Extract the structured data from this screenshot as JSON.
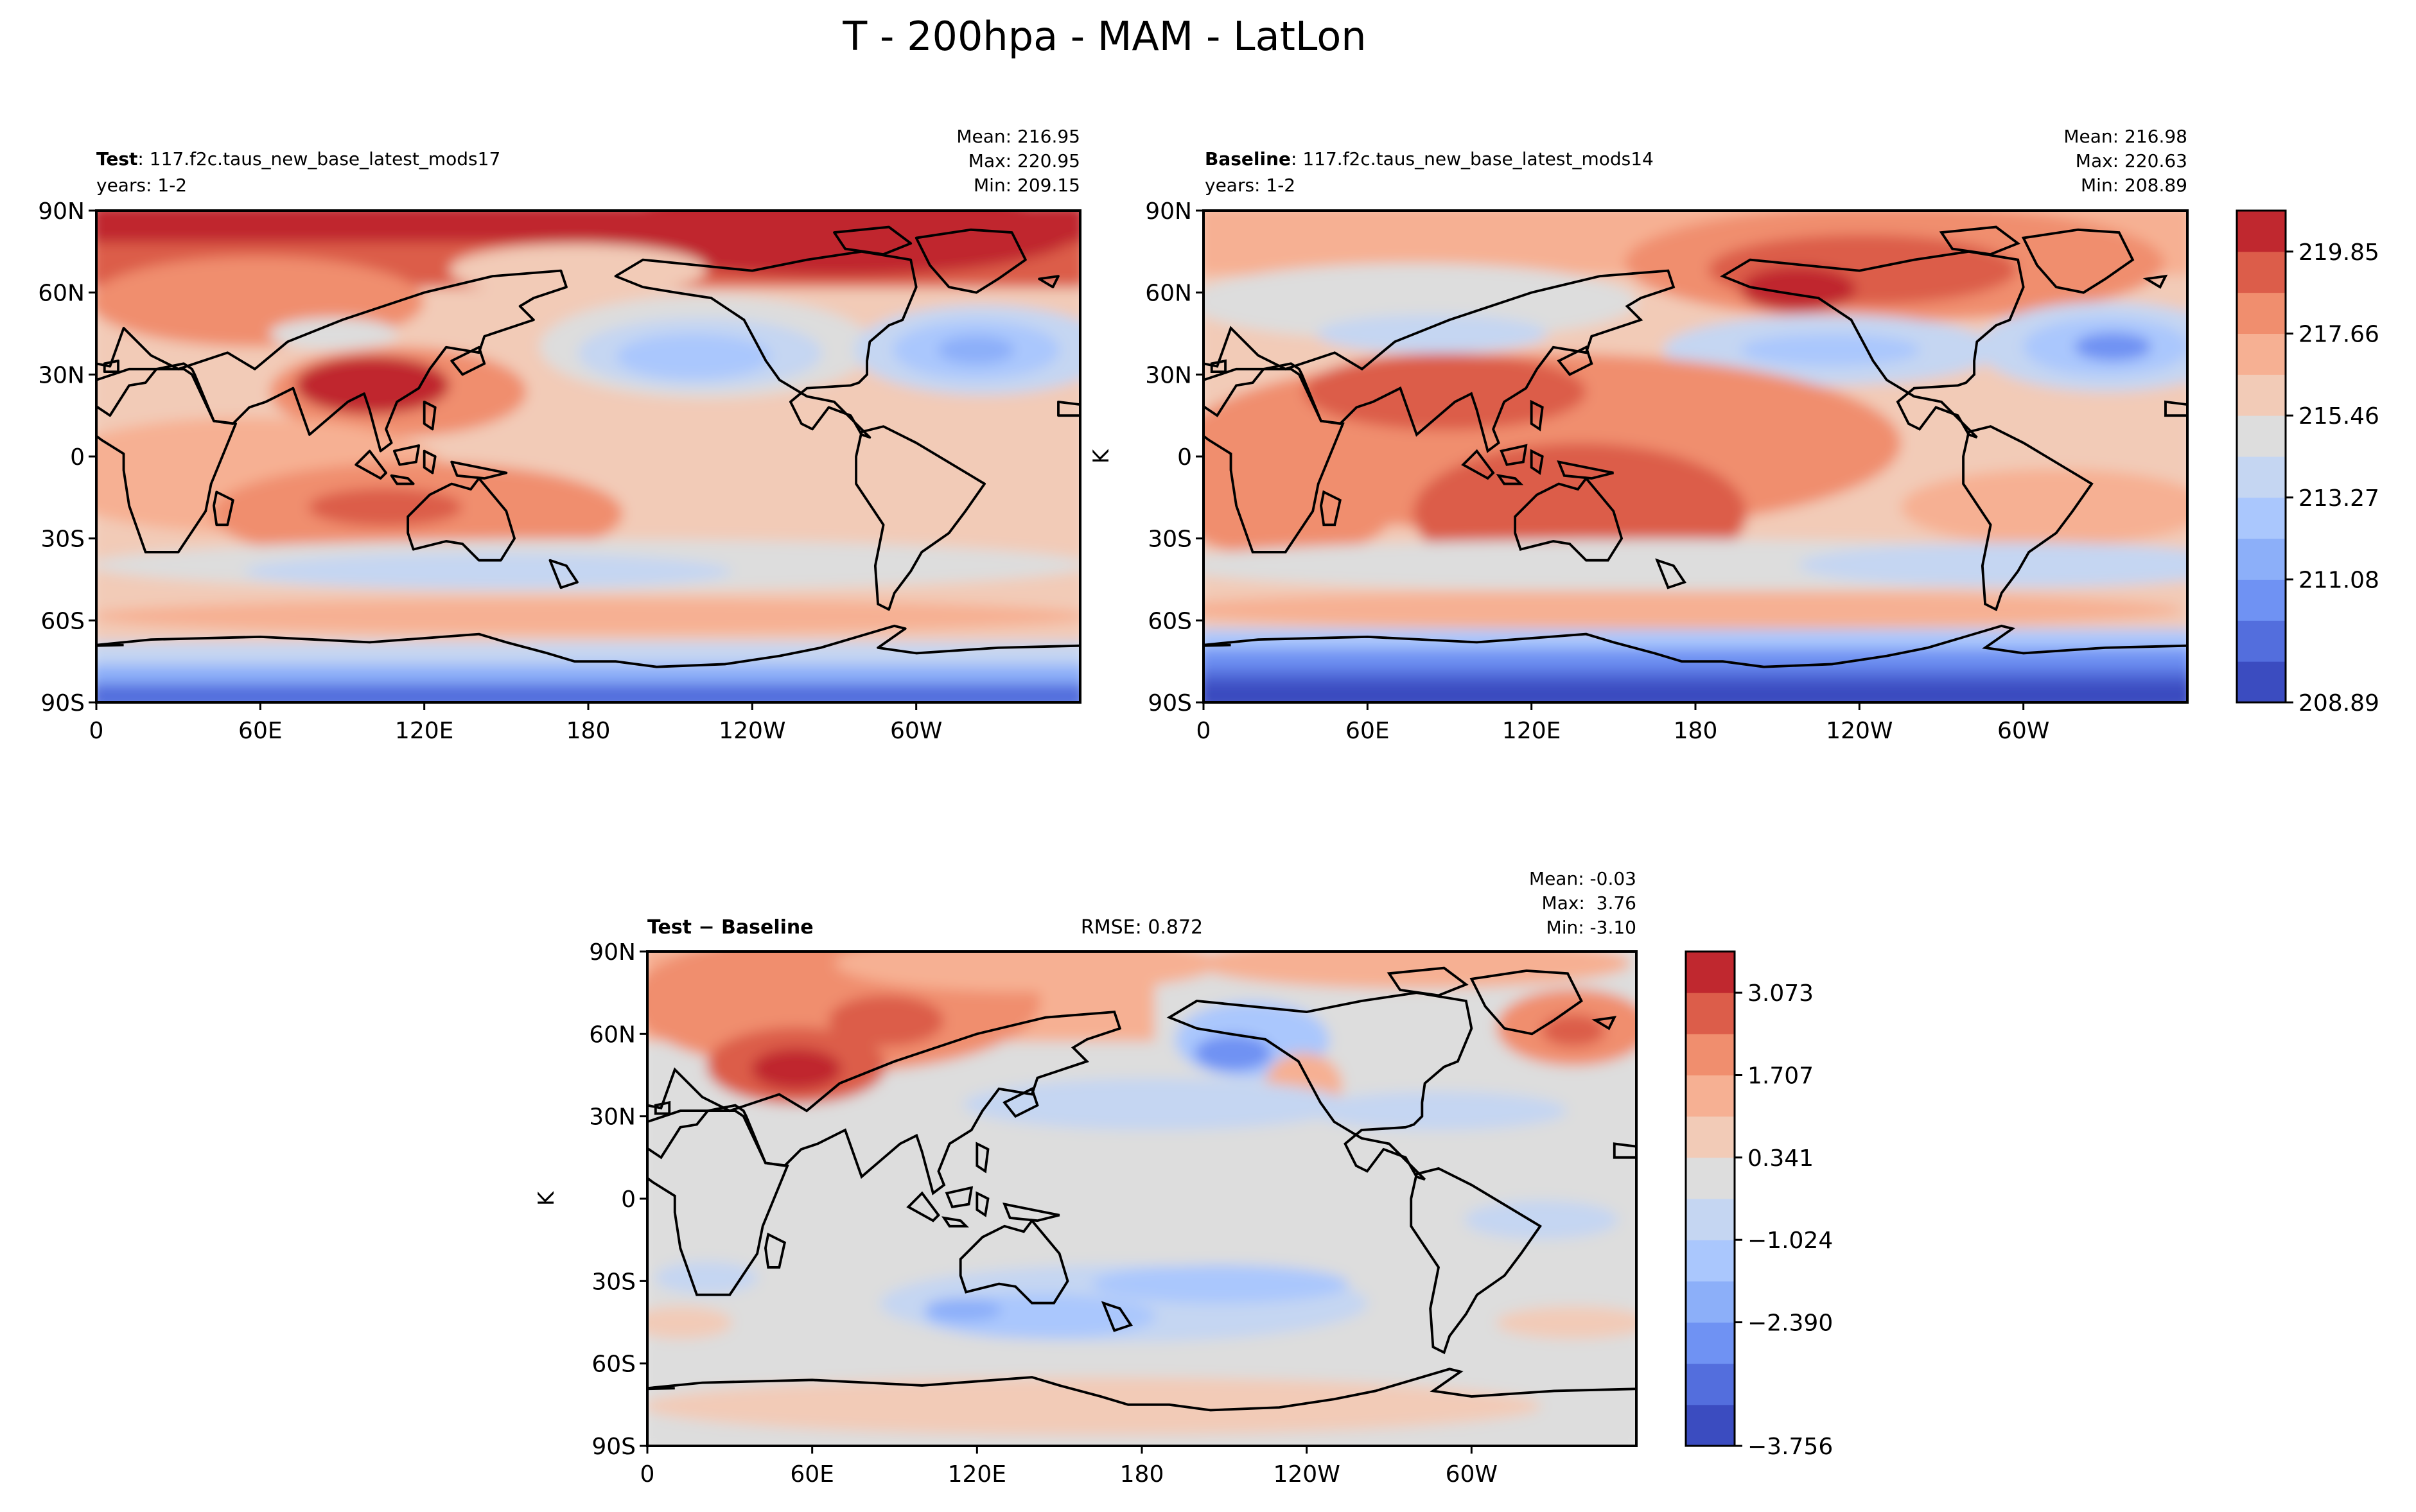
{
  "figure_title": "T - 200hpa - MAM - LatLon",
  "colors": {
    "levels": [
      "#3b4cc0",
      "#536edd",
      "#6f92f3",
      "#8caff9",
      "#aac7fd",
      "#c5d6f2",
      "#dddddd",
      "#f2cbb7",
      "#f6b093",
      "#f08e6e",
      "#dc5d4a",
      "#c0282f"
    ],
    "coast": "#000000",
    "frame": "#000000"
  },
  "panels": {
    "test": {
      "label_bold": "Test",
      "label_rest": ": 117.f2c.taus_new_base_latest_mods17",
      "years": "years: 1-2",
      "stats": {
        "mean": "Mean: 216.95",
        "max": "Max: 220.95",
        "min": "Min: 209.15"
      }
    },
    "baseline": {
      "label_bold": "Baseline",
      "label_rest": ": 117.f2c.taus_new_base_latest_mods14",
      "years": "years: 1-2",
      "stats": {
        "mean": "Mean: 216.98",
        "max": "Max: 220.63",
        "min": "Min: 208.89"
      },
      "colorbar_ticks": [
        "219.85",
        "217.66",
        "215.46",
        "213.27",
        "211.08",
        "208.89"
      ],
      "colorbar_unit": "K"
    },
    "diff": {
      "label": "Test − Baseline",
      "rmse": "RMSE: 0.872",
      "stats": {
        "mean": "Mean: -0.03",
        "max": "Max:  3.76",
        "min": "Min: -3.10"
      },
      "colorbar_ticks": [
        "3.073",
        "1.707",
        "0.341",
        "−1.024",
        "−2.390",
        "−3.756"
      ],
      "colorbar_unit": "K"
    }
  },
  "chart_data": [
    {
      "type": "heatmap",
      "id": "test",
      "title": "Test: 117.f2c.taus_new_base_latest_mods17",
      "lon_ticks": [
        "0",
        "60E",
        "120E",
        "180",
        "120W",
        "60W"
      ],
      "lat_ticks": [
        "90N",
        "60N",
        "30N",
        "0",
        "30S",
        "60S",
        "90S"
      ],
      "xlim": [
        0,
        360
      ],
      "ylim": [
        -90,
        90
      ],
      "mean": 216.95,
      "max": 220.95,
      "min": 209.15
    },
    {
      "type": "heatmap",
      "id": "baseline",
      "title": "Baseline: 117.f2c.taus_new_base_latest_mods14",
      "lon_ticks": [
        "0",
        "60E",
        "120E",
        "180",
        "120W",
        "60W"
      ],
      "lat_ticks": [
        "90N",
        "60N",
        "30N",
        "0",
        "30S",
        "60S",
        "90S"
      ],
      "xlim": [
        0,
        360
      ],
      "ylim": [
        -90,
        90
      ],
      "mean": 216.98,
      "max": 220.63,
      "min": 208.89,
      "levels_range": [
        208.89,
        221.95
      ]
    },
    {
      "type": "heatmap",
      "id": "diff",
      "title": "Test − Baseline",
      "lon_ticks": [
        "0",
        "60E",
        "120E",
        "180",
        "120W",
        "60W"
      ],
      "lat_ticks": [
        "90N",
        "60N",
        "30N",
        "0",
        "30S",
        "60S",
        "90S"
      ],
      "xlim": [
        0,
        360
      ],
      "ylim": [
        -90,
        90
      ],
      "mean": -0.03,
      "max": 3.76,
      "min": -3.1,
      "rmse": 0.872,
      "levels_range": [
        -3.756,
        4.439
      ]
    }
  ]
}
